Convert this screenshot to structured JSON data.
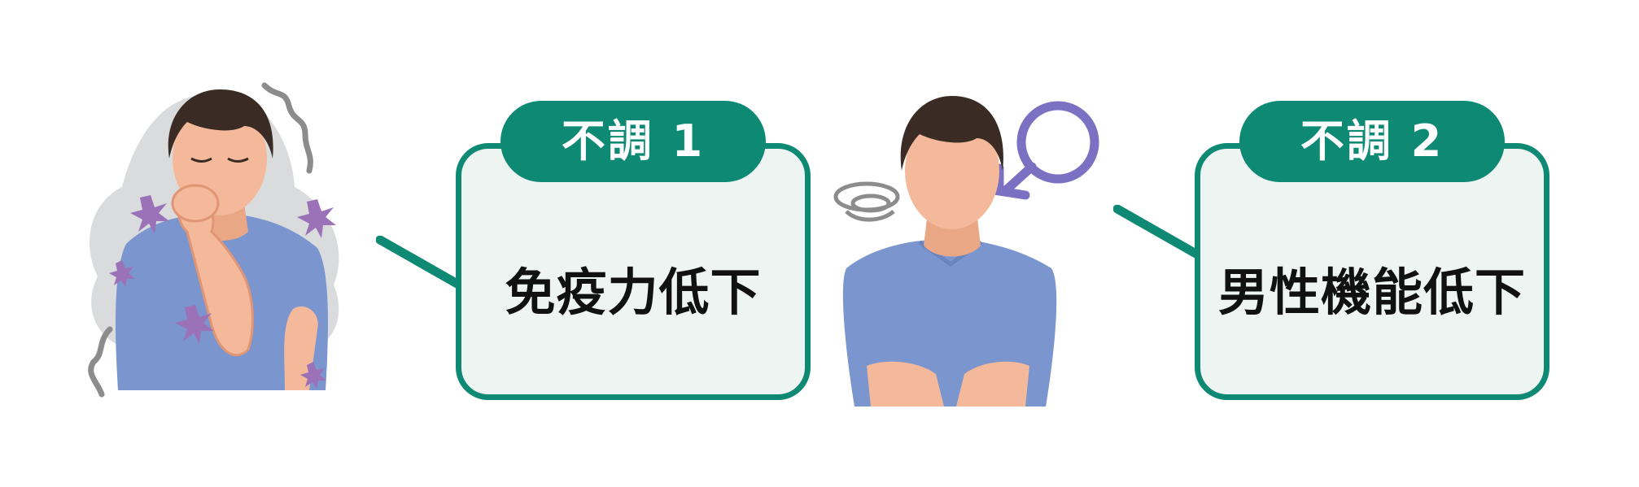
{
  "colors": {
    "accent": "#0e8a74",
    "box_fill": "#edf4f2",
    "shirt": "#7b96cf",
    "skin": "#f3b99a",
    "hair": "#3a2c24",
    "virus": "#9b72b8",
    "male_symbol": "#7b70c2"
  },
  "panels": [
    {
      "badge": "不調 1",
      "text": "免疫力低下"
    },
    {
      "badge": "不調 2",
      "text": "男性機能低下"
    }
  ],
  "illustrations": [
    {
      "subject": "man coughing into fist, surrounded by germs",
      "icons": [
        "cough-person-icon",
        "virus-icon"
      ]
    },
    {
      "subject": "man with confused expression and male symbol",
      "icons": [
        "man-icon",
        "dizzy-swirl-icon",
        "male-symbol-icon"
      ]
    }
  ]
}
